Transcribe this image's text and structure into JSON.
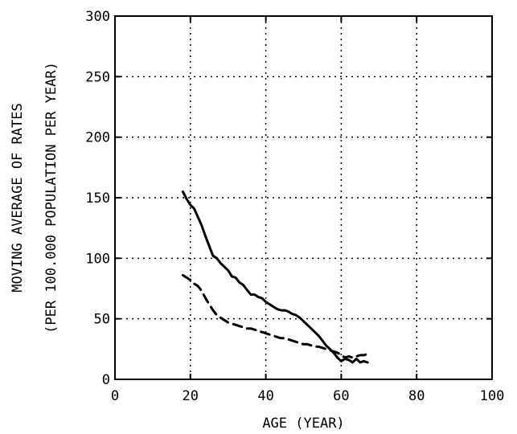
{
  "chart_data": {
    "type": "line",
    "title": "",
    "xlabel": "AGE (YEAR)",
    "ylabel": [
      "MOVING AVERAGE OF RATES",
      "(PER 100.000 POPULATION PER YEAR)"
    ],
    "xlim": [
      0,
      100
    ],
    "ylim": [
      0,
      300
    ],
    "xticks": [
      0,
      20,
      40,
      60,
      80,
      100
    ],
    "yticks": [
      0,
      50,
      100,
      150,
      200,
      250,
      300
    ],
    "grid": true,
    "legend": "none",
    "colors": {
      "line": "#000000",
      "grid": "#000000",
      "background": "#ffffff"
    },
    "series": [
      {
        "style": "solid",
        "x": [
          18,
          19,
          20,
          21,
          22,
          23,
          24,
          25,
          26,
          27,
          28,
          29,
          30,
          31,
          32,
          33,
          34,
          35,
          36,
          37,
          38,
          39,
          40,
          41,
          42,
          43,
          44,
          45,
          46,
          47,
          48,
          49,
          50,
          51,
          52,
          53,
          54,
          55,
          56,
          57,
          58,
          59,
          60,
          61,
          62,
          63,
          64,
          65,
          66,
          67
        ],
        "y": [
          155,
          149,
          144,
          141,
          134,
          127,
          118,
          110,
          102,
          100,
          96,
          93,
          90,
          85,
          84,
          80,
          78,
          74,
          70,
          70,
          68,
          67,
          64,
          62,
          60,
          58,
          57,
          57,
          56,
          54,
          53,
          51,
          48,
          45,
          42,
          39,
          36,
          32,
          28,
          25,
          22,
          18,
          15,
          17,
          16,
          14,
          17,
          14,
          15,
          14
        ]
      },
      {
        "style": "dashed",
        "x": [
          18,
          19,
          20,
          21,
          22,
          23,
          24,
          25,
          26,
          27,
          28,
          29,
          30,
          31,
          32,
          33,
          34,
          35,
          36,
          37,
          38,
          39,
          40,
          41,
          42,
          43,
          44,
          45,
          46,
          47,
          48,
          49,
          50,
          51,
          52,
          53,
          54,
          55,
          56,
          57,
          58,
          59,
          60,
          61,
          62,
          63,
          64,
          65,
          66,
          67
        ],
        "y": [
          86,
          84,
          82,
          79,
          77,
          73,
          67,
          62,
          57,
          53,
          51,
          49,
          47,
          46,
          45,
          44,
          43,
          42,
          42,
          41,
          40,
          39,
          38,
          37,
          36,
          35,
          34,
          34,
          33,
          32,
          31,
          30,
          29,
          29,
          28,
          27,
          27,
          26,
          25,
          24,
          23,
          22,
          20,
          18,
          19,
          18,
          19,
          20,
          20,
          21
        ]
      }
    ]
  }
}
